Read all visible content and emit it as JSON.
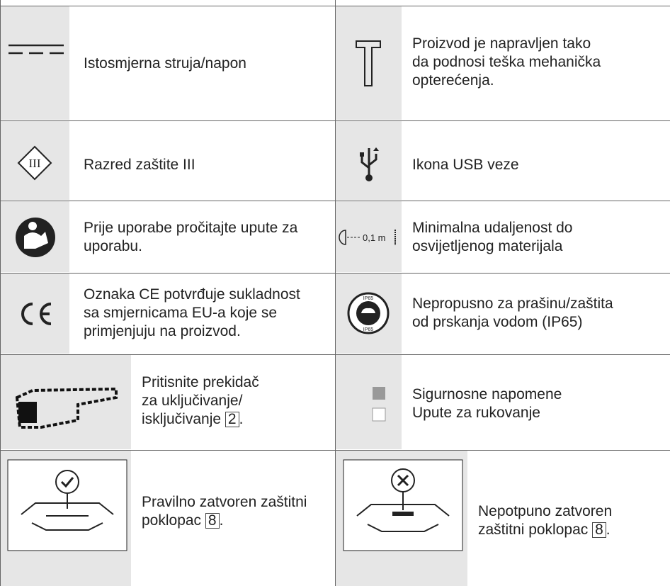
{
  "rows": [
    {
      "left": {
        "lines": [
          "Istosmjerna struja/napon"
        ]
      },
      "right": {
        "lines": [
          "Proizvod je napravljen tako",
          "da podnosi teška mehanička",
          "opterećenja."
        ]
      }
    },
    {
      "left": {
        "icon": "III",
        "lines": [
          "Razred zaštite III"
        ]
      },
      "right": {
        "lines": [
          "Ikona USB veze"
        ]
      }
    },
    {
      "left": {
        "lines": [
          "Prije uporabe pročitajte upute za",
          "uporabu."
        ]
      },
      "right": {
        "icon": "0,1 m",
        "lines": [
          "Minimalna udaljenost do",
          "osvijetljenog materijala"
        ]
      }
    },
    {
      "left": {
        "lines": [
          "Oznaka CE potvrđuje sukladnost",
          "sa smjernicama EU-a koje se",
          "primjenjuju na proizvod."
        ]
      },
      "right": {
        "icon": "IP65",
        "lines": [
          "Nepropusno za prašinu/zaštita",
          "od prskanja vodom (IP65)"
        ]
      }
    },
    {
      "left": {
        "lines": [
          "Pritisnite prekidač",
          "za uključivanje/",
          "isključivanje "
        ],
        "ref": "2",
        "suffix": "."
      },
      "right": {
        "lines": [
          "Sigurnosne napomene",
          "Upute za rukovanje"
        ]
      }
    },
    {
      "left": {
        "lines": [
          "Pravilno zatvoren zaštitni",
          "poklopac "
        ],
        "ref": "8",
        "suffix": "."
      },
      "right": {
        "lines": [
          "Nepotpuno zatvoren",
          "zaštitni poklopac "
        ],
        "ref": "8",
        "suffix": "."
      }
    }
  ]
}
